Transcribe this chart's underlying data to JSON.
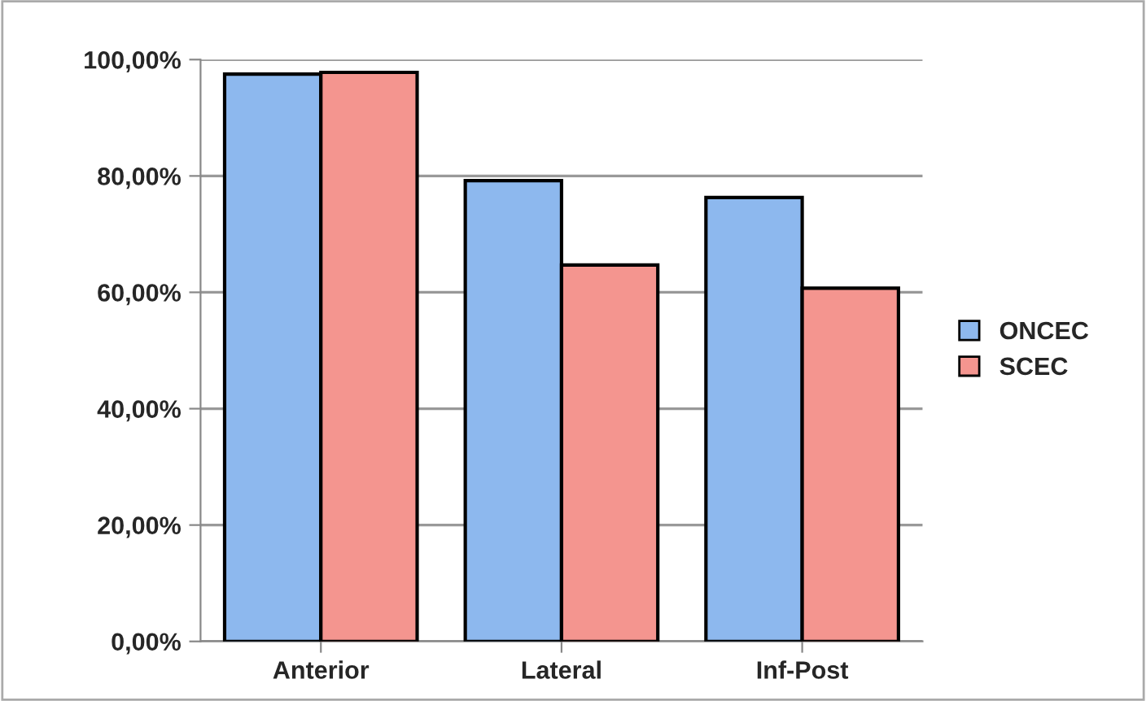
{
  "chart_data": {
    "type": "bar",
    "categories": [
      "Anterior",
      "Lateral",
      "Inf-Post"
    ],
    "series": [
      {
        "name": "ONCEC",
        "color": "#8db8ee",
        "values": [
          97.5,
          79.2,
          76.3
        ]
      },
      {
        "name": "SCEC",
        "color": "#f4958f",
        "values": [
          97.8,
          64.7,
          60.7
        ]
      }
    ],
    "ylim": [
      0,
      100
    ],
    "yticks": [
      {
        "value": 0,
        "label": "0,00%"
      },
      {
        "value": 20,
        "label": "20,00%"
      },
      {
        "value": 40,
        "label": "40,00%"
      },
      {
        "value": 60,
        "label": "60,00%"
      },
      {
        "value": 80,
        "label": "80,00%"
      },
      {
        "value": 100,
        "label": "100,00%"
      }
    ],
    "grid": "y",
    "legend": "right"
  }
}
